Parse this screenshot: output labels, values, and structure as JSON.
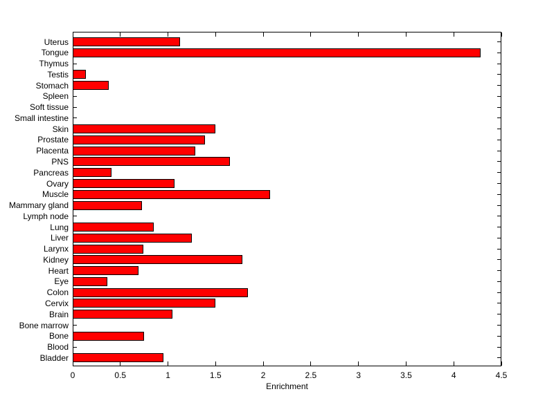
{
  "figure": {
    "background_color": "#ffffff",
    "axis_color": "#000000"
  },
  "chart_data": {
    "type": "bar",
    "orientation": "horizontal",
    "title": "",
    "xlabel": "Enrichment",
    "ylabel": "",
    "xlim": [
      0,
      4.5
    ],
    "xticks": [
      0,
      0.5,
      1,
      1.5,
      2,
      2.5,
      3,
      3.5,
      4,
      4.5
    ],
    "xtick_labels": [
      "0",
      "0.5",
      "1",
      "1.5",
      "2",
      "2.5",
      "3",
      "3.5",
      "4",
      "4.5"
    ],
    "grid": false,
    "legend": null,
    "bar_color": "#ff0000",
    "bar_edge_color": "#000000",
    "categories": [
      "Uterus",
      "Tongue",
      "Thymus",
      "Testis",
      "Stomach",
      "Spleen",
      "Soft tissue",
      "Small intestine",
      "Skin",
      "Prostate",
      "Placenta",
      "PNS",
      "Pancreas",
      "Ovary",
      "Muscle",
      "Mammary gland",
      "Lymph node",
      "Lung",
      "Liver",
      "Larynx",
      "Kidney",
      "Heart",
      "Eye",
      "Colon",
      "Cervix",
      "Brain",
      "Bone marrow",
      "Bone",
      "Blood",
      "Bladder"
    ],
    "values": [
      1.13,
      4.28,
      0,
      0.14,
      0.38,
      0,
      0,
      0,
      1.5,
      1.39,
      1.29,
      1.65,
      0.41,
      1.07,
      2.07,
      0.73,
      0,
      0.85,
      1.25,
      0.74,
      1.78,
      0.69,
      0.36,
      1.84,
      1.5,
      1.05,
      0,
      0.75,
      0,
      0.95
    ]
  }
}
